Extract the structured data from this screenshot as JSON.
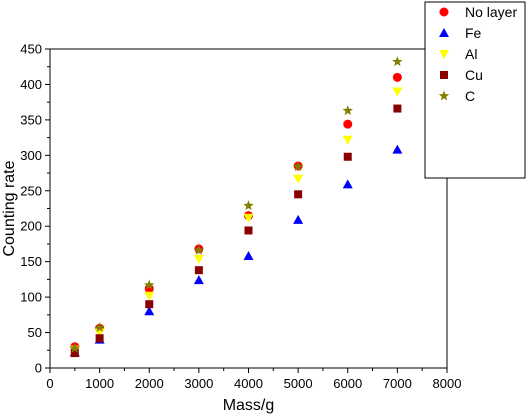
{
  "chart_data": {
    "type": "scatter",
    "title": "",
    "xlabel": "Mass/g",
    "ylabel": "Counting rate",
    "xlim": [
      0,
      8000
    ],
    "ylim": [
      0,
      450
    ],
    "xticks": [
      0,
      1000,
      2000,
      3000,
      4000,
      5000,
      6000,
      7000,
      8000
    ],
    "yticks": [
      0,
      50,
      100,
      150,
      200,
      250,
      300,
      350,
      400,
      450
    ],
    "grid": false,
    "legend_position": "top-right",
    "x": [
      500,
      1000,
      2000,
      3000,
      4000,
      5000,
      6000,
      7000
    ],
    "series": [
      {
        "name": "No layer",
        "marker": "circle",
        "color": "#ff0000",
        "values": [
          30,
          56,
          112,
          168,
          215,
          285,
          344,
          410
        ]
      },
      {
        "name": "Fe",
        "marker": "triangle-up",
        "color": "#0000ff",
        "values": [
          22,
          40,
          80,
          124,
          158,
          209,
          259,
          308
        ]
      },
      {
        "name": "Al",
        "marker": "triangle-down",
        "color": "#ffff00",
        "values": [
          26,
          50,
          102,
          154,
          212,
          267,
          322,
          390
        ]
      },
      {
        "name": "Cu",
        "marker": "square",
        "color": "#8b0000",
        "values": [
          21,
          42,
          90,
          138,
          194,
          245,
          298,
          366
        ]
      },
      {
        "name": "C",
        "marker": "star",
        "color": "#808000",
        "values": [
          28,
          57,
          117,
          166,
          229,
          284,
          363,
          432
        ]
      }
    ]
  }
}
